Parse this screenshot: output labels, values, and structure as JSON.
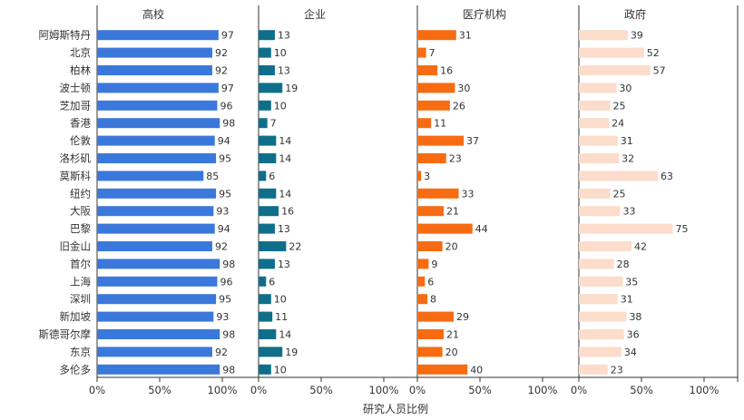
{
  "chart_data": {
    "type": "bar",
    "orientation": "horizontal",
    "xlabel": "研究人员比例",
    "xlim": [
      0,
      100
    ],
    "ticks": [
      "0%",
      "50%",
      "100%"
    ],
    "grid": false,
    "categories": [
      "阿姆斯特丹",
      "北京",
      "柏林",
      "波士顿",
      "芝加哥",
      "香港",
      "伦敦",
      "洛杉矶",
      "莫斯科",
      "纽约",
      "大阪",
      "巴黎",
      "旧金山",
      "首尔",
      "上海",
      "深圳",
      "新加坡",
      "斯德哥尔摩",
      "东京",
      "多伦多"
    ],
    "series": [
      {
        "name": "高校",
        "color": "#3b78db",
        "values": [
          97,
          92,
          92,
          97,
          96,
          98,
          94,
          95,
          85,
          95,
          93,
          94,
          92,
          98,
          96,
          95,
          93,
          98,
          92,
          98
        ]
      },
      {
        "name": "企业",
        "color": "#0f6f8a",
        "values": [
          13,
          10,
          13,
          19,
          10,
          7,
          14,
          14,
          6,
          14,
          16,
          13,
          22,
          13,
          6,
          10,
          11,
          14,
          19,
          10
        ]
      },
      {
        "name": "医疗机构",
        "color": "#f76c12",
        "values": [
          31,
          7,
          16,
          30,
          26,
          11,
          37,
          23,
          3,
          33,
          21,
          44,
          20,
          9,
          6,
          8,
          29,
          21,
          20,
          40
        ]
      },
      {
        "name": "政府",
        "color": "#fcdccb",
        "values": [
          39,
          52,
          57,
          30,
          25,
          24,
          31,
          32,
          63,
          25,
          33,
          75,
          42,
          28,
          35,
          31,
          38,
          36,
          34,
          23
        ]
      }
    ]
  }
}
